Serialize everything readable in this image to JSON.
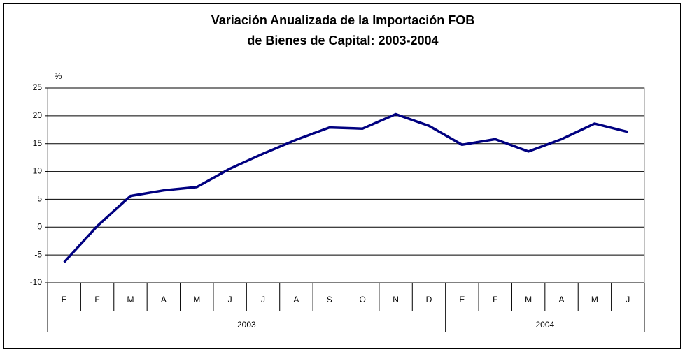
{
  "chart_data": {
    "type": "line",
    "title": [
      "Variación Anualizada de la Importación FOB",
      "de Bienes de Capital: 2003-2004"
    ],
    "y_label": "%",
    "groups": [
      {
        "name": "2003",
        "categories": [
          "E",
          "F",
          "M",
          "A",
          "M",
          "J",
          "J",
          "A",
          "S",
          "O",
          "N",
          "D"
        ]
      },
      {
        "name": "2004",
        "categories": [
          "E",
          "F",
          "M",
          "A",
          "M",
          "J"
        ]
      }
    ],
    "series": [
      {
        "name": "Variación",
        "color": "#000080",
        "values": [
          -6.3,
          0.2,
          5.6,
          6.6,
          7.2,
          10.5,
          13.2,
          15.7,
          17.9,
          17.7,
          20.3,
          18.2,
          14.8,
          15.8,
          13.6,
          15.8,
          18.6,
          17.1
        ]
      }
    ],
    "ylim": [
      -10,
      25
    ],
    "yticks": [
      -10,
      -5,
      0,
      5,
      10,
      15,
      20,
      25
    ],
    "grid": true
  }
}
